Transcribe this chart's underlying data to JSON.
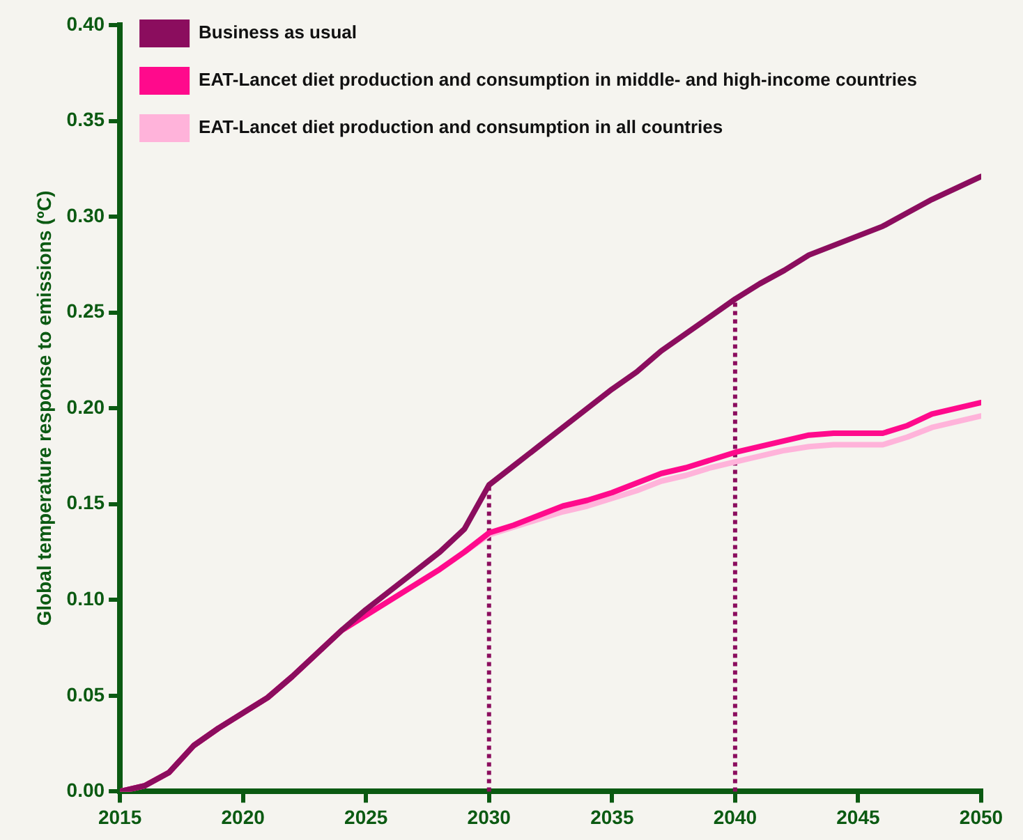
{
  "chart_data": {
    "type": "line",
    "ylabel": "Global temperature response to emissions (ºC)",
    "x": [
      2015,
      2016,
      2017,
      2018,
      2019,
      2020,
      2021,
      2022,
      2023,
      2024,
      2025,
      2026,
      2027,
      2028,
      2029,
      2030,
      2031,
      2032,
      2033,
      2034,
      2035,
      2036,
      2037,
      2038,
      2039,
      2040,
      2041,
      2042,
      2043,
      2044,
      2045,
      2046,
      2047,
      2048,
      2049,
      2050
    ],
    "series": [
      {
        "name": "Business as usual",
        "color": "#8b0d5e",
        "values": [
          0,
          0.003,
          0.01,
          0.024,
          0.033,
          0.041,
          0.049,
          0.06,
          0.072,
          0.084,
          0.095,
          0.105,
          0.115,
          0.125,
          0.137,
          0.16,
          0.17,
          0.18,
          0.19,
          0.2,
          0.21,
          0.219,
          0.23,
          0.239,
          0.248,
          0.257,
          0.265,
          0.272,
          0.28,
          0.285,
          0.29,
          0.295,
          0.302,
          0.309,
          0.315,
          0.321
        ]
      },
      {
        "name": "EAT-Lancet diet production and consumption in middle- and high-income countries",
        "color": "#ff0a8c",
        "values": [
          0,
          0.003,
          0.01,
          0.024,
          0.033,
          0.041,
          0.049,
          0.06,
          0.072,
          0.084,
          0.092,
          0.1,
          0.108,
          0.116,
          0.125,
          0.135,
          0.139,
          0.144,
          0.149,
          0.152,
          0.156,
          0.161,
          0.166,
          0.169,
          0.173,
          0.177,
          0.18,
          0.183,
          0.186,
          0.187,
          0.187,
          0.187,
          0.191,
          0.197,
          0.2,
          0.203
        ]
      },
      {
        "name": "EAT-Lancet diet production and consumption in all countries",
        "color": "#ffb3da",
        "values": [
          0,
          0.003,
          0.01,
          0.024,
          0.033,
          0.041,
          0.049,
          0.06,
          0.072,
          0.084,
          0.092,
          0.1,
          0.108,
          0.116,
          0.125,
          0.134,
          0.138,
          0.142,
          0.146,
          0.149,
          0.153,
          0.157,
          0.162,
          0.165,
          0.169,
          0.172,
          0.175,
          0.178,
          0.18,
          0.181,
          0.181,
          0.181,
          0.185,
          0.19,
          0.193,
          0.196
        ]
      }
    ],
    "xlim": [
      2015,
      2050
    ],
    "xticks": [
      2015,
      2020,
      2025,
      2030,
      2035,
      2040,
      2045,
      2050
    ],
    "ylim": [
      0,
      0.4
    ],
    "yticks": [
      {
        "value": 0,
        "label": "0.00"
      },
      {
        "value": 0.05,
        "label": "0.05"
      },
      {
        "value": 0.1,
        "label": "0.10"
      },
      {
        "value": 0.15,
        "label": "0.15"
      },
      {
        "value": 0.2,
        "label": "0.20"
      },
      {
        "value": 0.25,
        "label": "0.25"
      },
      {
        "value": 0.3,
        "label": "0.30"
      },
      {
        "value": 0.35,
        "label": "0.35"
      },
      {
        "value": 0.4,
        "label": "0.40"
      }
    ],
    "ref_lines": [
      {
        "axis": "x",
        "value": 2030,
        "color": "#8b0d5e",
        "line_style": "dotted"
      },
      {
        "axis": "x",
        "value": 2040,
        "color": "#8b0d5e",
        "line_style": "dotted"
      }
    ],
    "grid": false,
    "legend": "top left",
    "marker": "none",
    "line_style": "solid"
  }
}
